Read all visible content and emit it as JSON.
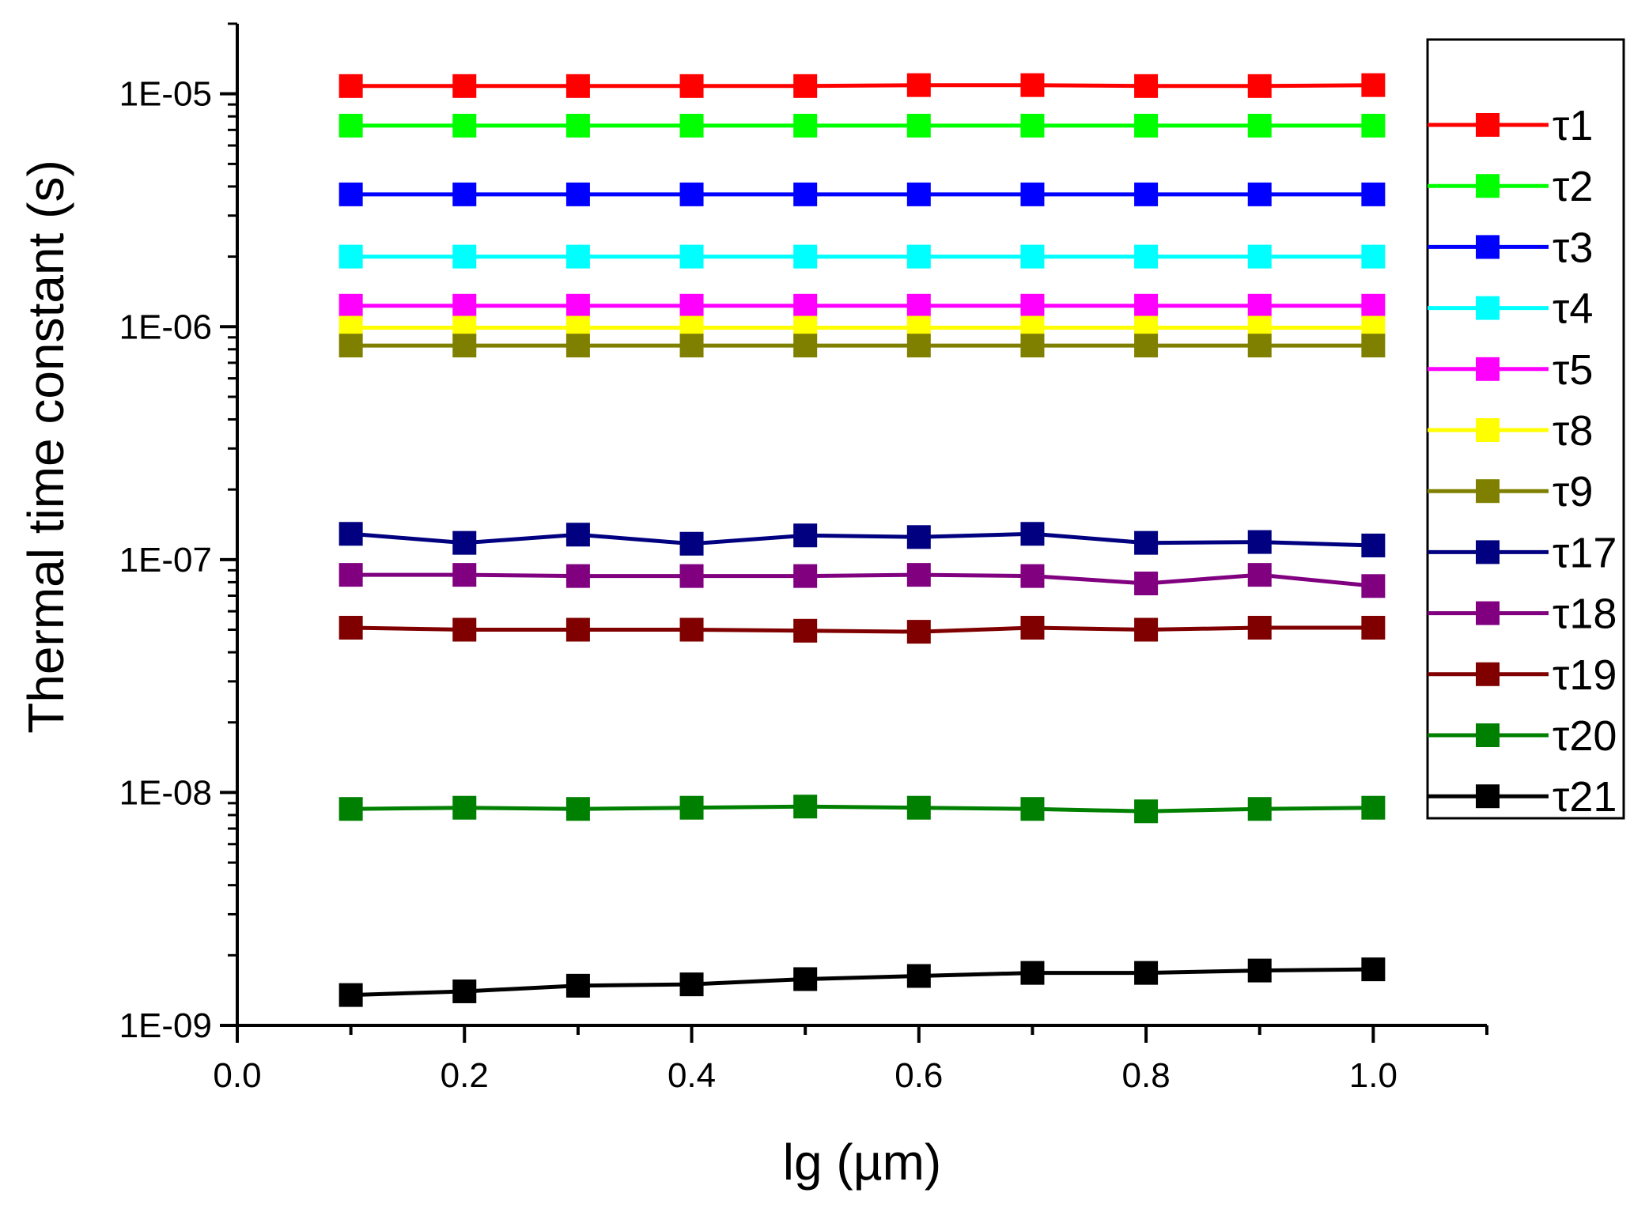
{
  "chart_data": {
    "type": "line",
    "xlabel": "lg (µm)",
    "ylabel": "Thermal time constant (s)",
    "xlim": [
      0.0,
      1.1
    ],
    "ylim": [
      1e-09,
      2e-05
    ],
    "yscale": "log",
    "grid": false,
    "legend_position": "right",
    "x_ticks": [
      "0.0",
      "0.2",
      "0.4",
      "0.6",
      "0.8",
      "1.0"
    ],
    "y_ticks": [
      "1E-09",
      "1E-08",
      "1E-07",
      "1E-06",
      "1E-05"
    ],
    "x": [
      0.1,
      0.2,
      0.3,
      0.4,
      0.5,
      0.6,
      0.7,
      0.8,
      0.9,
      1.0
    ],
    "series": [
      {
        "name": "τ1",
        "color": "#ff0000",
        "values": [
          1.08e-05,
          1.08e-05,
          1.08e-05,
          1.08e-05,
          1.08e-05,
          1.09e-05,
          1.09e-05,
          1.08e-05,
          1.08e-05,
          1.09e-05
        ]
      },
      {
        "name": "τ2",
        "color": "#00ff00",
        "values": [
          7.3e-06,
          7.3e-06,
          7.3e-06,
          7.3e-06,
          7.3e-06,
          7.3e-06,
          7.3e-06,
          7.3e-06,
          7.3e-06,
          7.3e-06
        ]
      },
      {
        "name": "τ3",
        "color": "#0000ff",
        "values": [
          3.7e-06,
          3.7e-06,
          3.7e-06,
          3.7e-06,
          3.7e-06,
          3.7e-06,
          3.7e-06,
          3.7e-06,
          3.7e-06,
          3.7e-06
        ]
      },
      {
        "name": "τ4",
        "color": "#00ffff",
        "values": [
          2e-06,
          2e-06,
          2e-06,
          2e-06,
          2e-06,
          2e-06,
          2e-06,
          2e-06,
          2e-06,
          2e-06
        ]
      },
      {
        "name": "τ5",
        "color": "#ff00ff",
        "values": [
          1.23e-06,
          1.23e-06,
          1.23e-06,
          1.23e-06,
          1.23e-06,
          1.23e-06,
          1.23e-06,
          1.23e-06,
          1.23e-06,
          1.23e-06
        ]
      },
      {
        "name": "τ8",
        "color": "#ffff00",
        "values": [
          9.9e-07,
          9.9e-07,
          9.9e-07,
          9.9e-07,
          9.9e-07,
          9.9e-07,
          9.9e-07,
          9.9e-07,
          9.9e-07,
          9.9e-07
        ]
      },
      {
        "name": "τ9",
        "color": "#808000",
        "values": [
          8.3e-07,
          8.3e-07,
          8.3e-07,
          8.3e-07,
          8.3e-07,
          8.3e-07,
          8.3e-07,
          8.3e-07,
          8.3e-07,
          8.3e-07
        ]
      },
      {
        "name": "τ17",
        "color": "#000080",
        "values": [
          1.29e-07,
          1.18e-07,
          1.28e-07,
          1.17e-07,
          1.27e-07,
          1.25e-07,
          1.29e-07,
          1.18e-07,
          1.19e-07,
          1.15e-07
        ]
      },
      {
        "name": "τ18",
        "color": "#800080",
        "values": [
          8.6e-08,
          8.6e-08,
          8.5e-08,
          8.5e-08,
          8.5e-08,
          8.6e-08,
          8.5e-08,
          7.9e-08,
          8.6e-08,
          7.7e-08
        ]
      },
      {
        "name": "τ19",
        "color": "#800000",
        "values": [
          5.1e-08,
          5e-08,
          5e-08,
          5e-08,
          4.95e-08,
          4.9e-08,
          5.1e-08,
          5e-08,
          5.1e-08,
          5.1e-08
        ]
      },
      {
        "name": "τ20",
        "color": "#008000",
        "values": [
          8.5e-09,
          8.6e-09,
          8.5e-09,
          8.6e-09,
          8.7e-09,
          8.6e-09,
          8.5e-09,
          8.3e-09,
          8.5e-09,
          8.6e-09
        ]
      },
      {
        "name": "τ21",
        "color": "#000000",
        "values": [
          1.35e-09,
          1.4e-09,
          1.48e-09,
          1.5e-09,
          1.58e-09,
          1.63e-09,
          1.68e-09,
          1.68e-09,
          1.72e-09,
          1.74e-09
        ]
      }
    ]
  }
}
